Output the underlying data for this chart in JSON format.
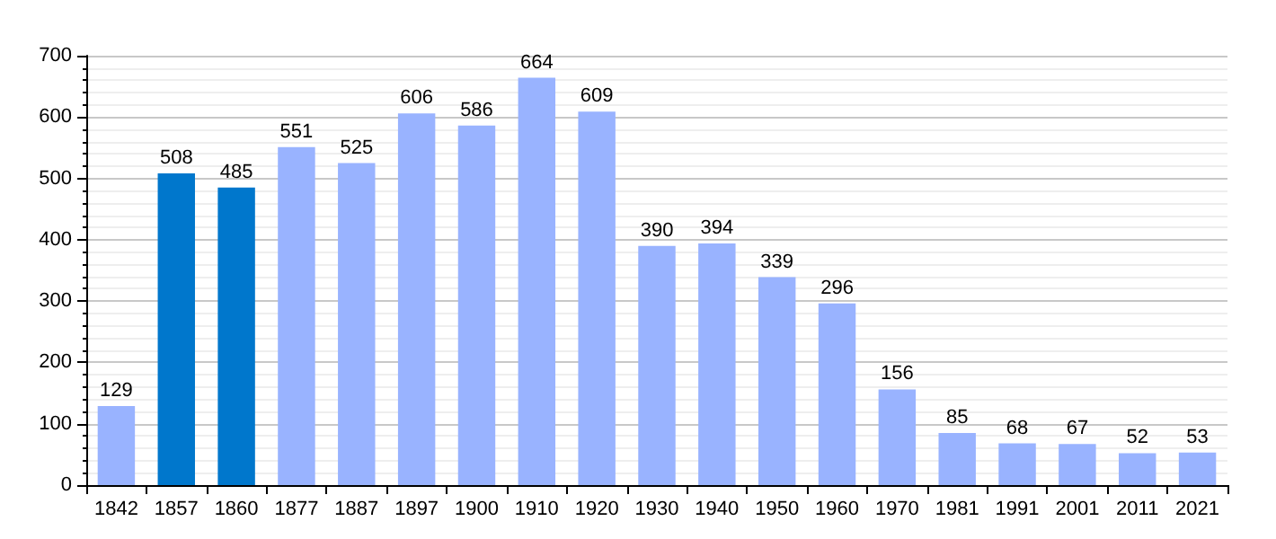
{
  "chart_data": {
    "type": "bar",
    "categories": [
      "1842",
      "1857",
      "1860",
      "1877",
      "1887",
      "1897",
      "1900",
      "1910",
      "1920",
      "1930",
      "1940",
      "1950",
      "1960",
      "1970",
      "1981",
      "1991",
      "2001",
      "2011",
      "2021"
    ],
    "values": [
      129,
      508,
      485,
      551,
      525,
      606,
      586,
      664,
      609,
      390,
      394,
      339,
      296,
      156,
      85,
      68,
      67,
      52,
      53
    ],
    "colors": [
      "#99b3ff",
      "#0077cc",
      "#0077cc",
      "#99b3ff",
      "#99b3ff",
      "#99b3ff",
      "#99b3ff",
      "#99b3ff",
      "#99b3ff",
      "#99b3ff",
      "#99b3ff",
      "#99b3ff",
      "#99b3ff",
      "#99b3ff",
      "#99b3ff",
      "#99b3ff",
      "#99b3ff",
      "#99b3ff",
      "#99b3ff"
    ],
    "ylim": [
      0,
      700
    ],
    "yticks": [
      0,
      100,
      200,
      300,
      400,
      500,
      600,
      700
    ],
    "grid": "y",
    "data_labels": true
  }
}
